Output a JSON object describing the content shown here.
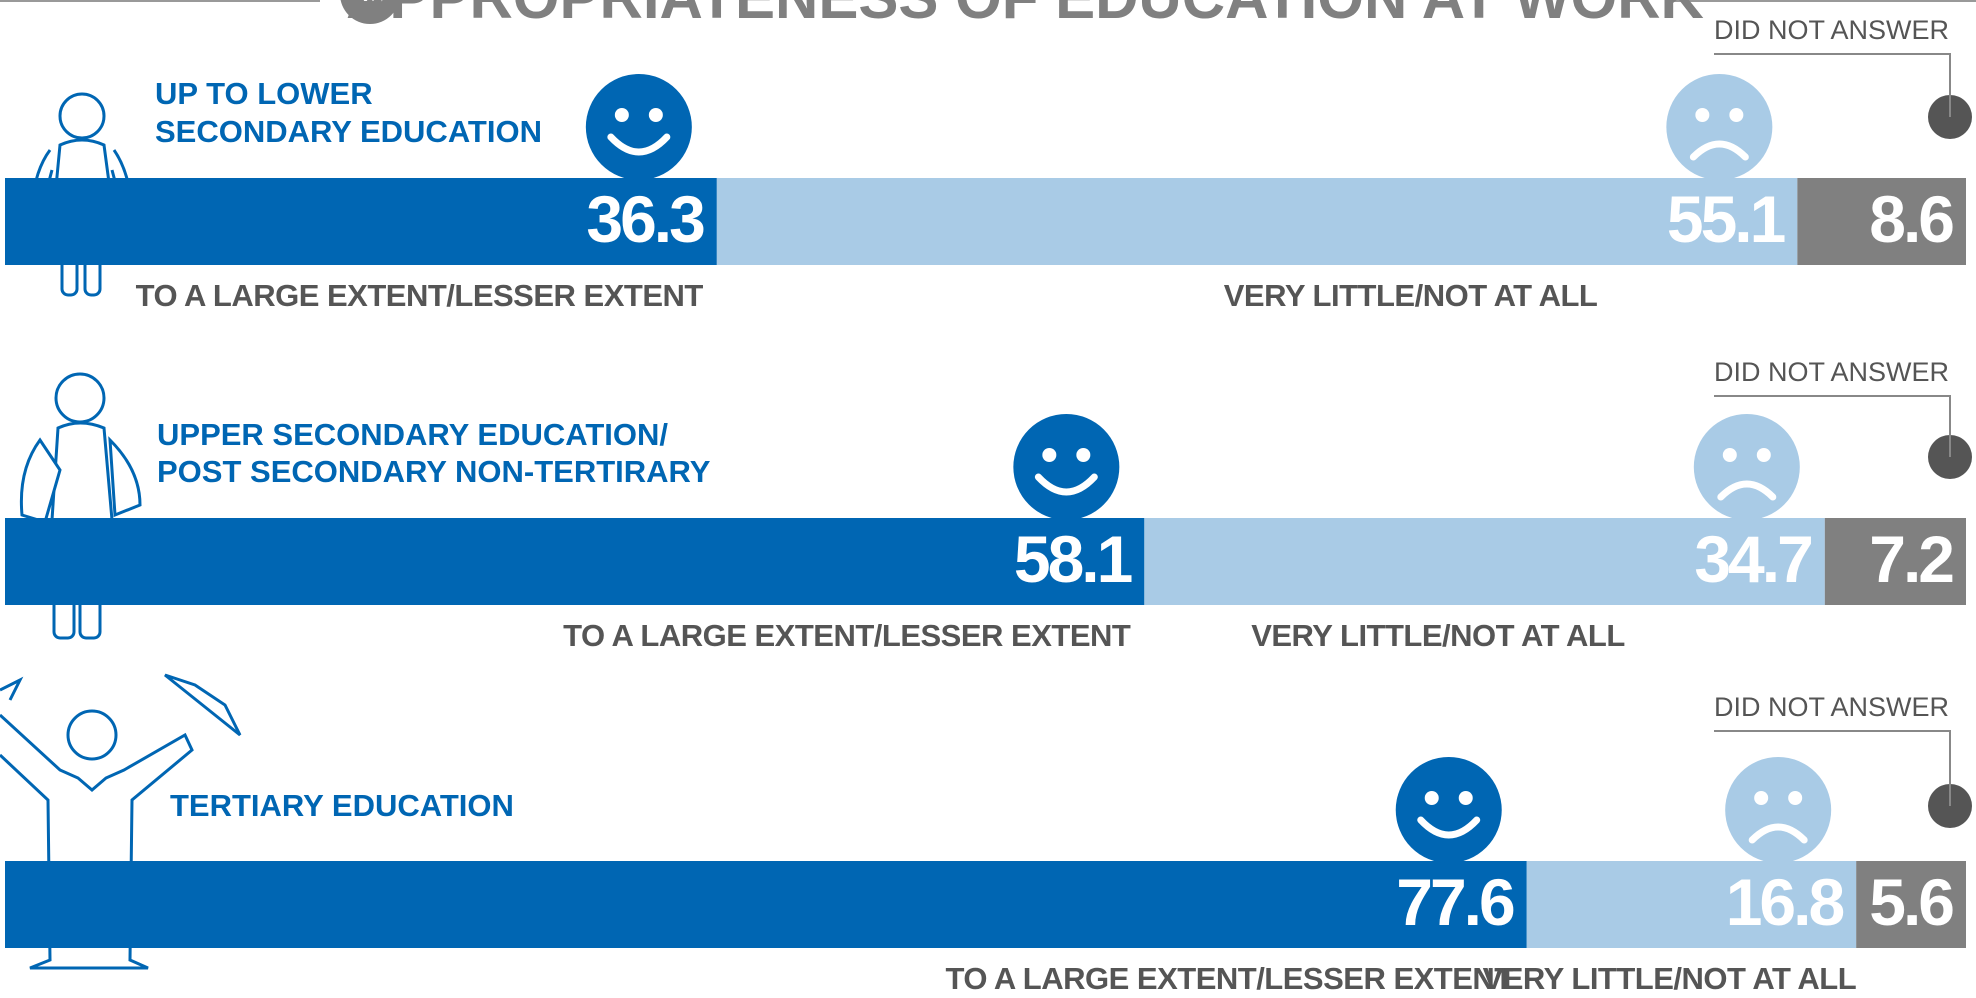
{
  "chart_data": {
    "type": "stacked-bar",
    "title": "APPROPRIATENESS OF EDUCATION AT WORK",
    "unit_badge": "%",
    "categories": [
      [
        "UP TO LOWER",
        "SECONDARY EDUCATION"
      ],
      [
        "UPPER SECONDARY EDUCATION/",
        "POST SECONDARY NON-TERTIRARY"
      ],
      [
        "TERTIARY EDUCATION"
      ]
    ],
    "series": [
      {
        "name": "TO A LARGE EXTENT/LESSER EXTENT",
        "color": "#0066b3",
        "values": [
          36.3,
          58.1,
          77.6
        ]
      },
      {
        "name": "VERY LITTLE/NOT AT ALL",
        "color": "#a9cbe6",
        "values": [
          55.1,
          34.7,
          16.8
        ]
      },
      {
        "name": "DID NOT ANSWER",
        "color": "#808080",
        "values": [
          8.6,
          7.2,
          5.6
        ]
      }
    ],
    "xlim": [
      0,
      100
    ]
  }
}
